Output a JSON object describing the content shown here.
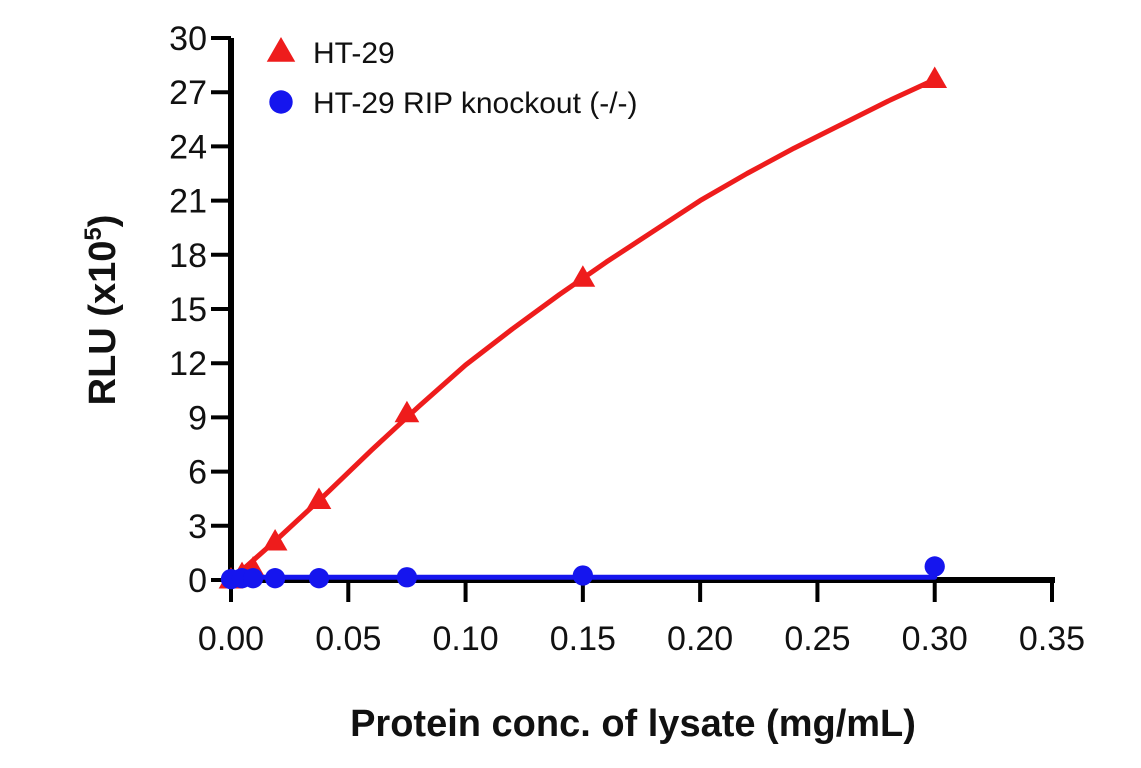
{
  "chart_data": {
    "type": "line",
    "title": "",
    "xlabel": "Protein conc. of lysate (mg/mL)",
    "ylabel": {
      "base": "RLU (x10",
      "superscript": "5",
      "close": ")"
    },
    "xlim": [
      0,
      0.35
    ],
    "ylim": [
      0,
      30
    ],
    "xticks": [
      "0.00",
      "0.05",
      "0.10",
      "0.15",
      "0.20",
      "0.25",
      "0.30",
      "0.35"
    ],
    "xtick_values": [
      0,
      0.05,
      0.1,
      0.15,
      0.2,
      0.25,
      0.3,
      0.35
    ],
    "yticks": [
      "0",
      "3",
      "6",
      "9",
      "12",
      "15",
      "18",
      "21",
      "24",
      "27",
      "30"
    ],
    "ytick_values": [
      0,
      3,
      6,
      9,
      12,
      15,
      18,
      21,
      24,
      27,
      30
    ],
    "grid": false,
    "legend_position": "top-left",
    "series": [
      {
        "name": "HT-29",
        "marker": "triangle",
        "color": "#ee1c1c",
        "x": [
          0,
          0.0047,
          0.0094,
          0.0188,
          0.0375,
          0.075,
          0.15,
          0.3
        ],
        "y": [
          0,
          0.3,
          0.6,
          2.1,
          4.4,
          9.2,
          16.7,
          27.7
        ],
        "curve_x": [
          0,
          0.02,
          0.04,
          0.06,
          0.08,
          0.1,
          0.12,
          0.14,
          0.16,
          0.18,
          0.2,
          0.22,
          0.24,
          0.26,
          0.28,
          0.3
        ],
        "curve_y": [
          0,
          2.3,
          4.7,
          7.2,
          9.6,
          11.9,
          13.9,
          15.8,
          17.6,
          19.3,
          21.0,
          22.5,
          23.9,
          25.2,
          26.5,
          27.7
        ]
      },
      {
        "name": "HT-29 RIP knockout (-/-)",
        "marker": "circle",
        "color": "#1515ee",
        "x": [
          0,
          0.0047,
          0.0094,
          0.0188,
          0.0375,
          0.075,
          0.15,
          0.3
        ],
        "y": [
          0.05,
          0.1,
          0.1,
          0.1,
          0.1,
          0.15,
          0.25,
          0.75
        ],
        "curve_x": [
          0,
          0.3
        ],
        "curve_y": [
          0.15,
          0.15
        ]
      }
    ]
  }
}
